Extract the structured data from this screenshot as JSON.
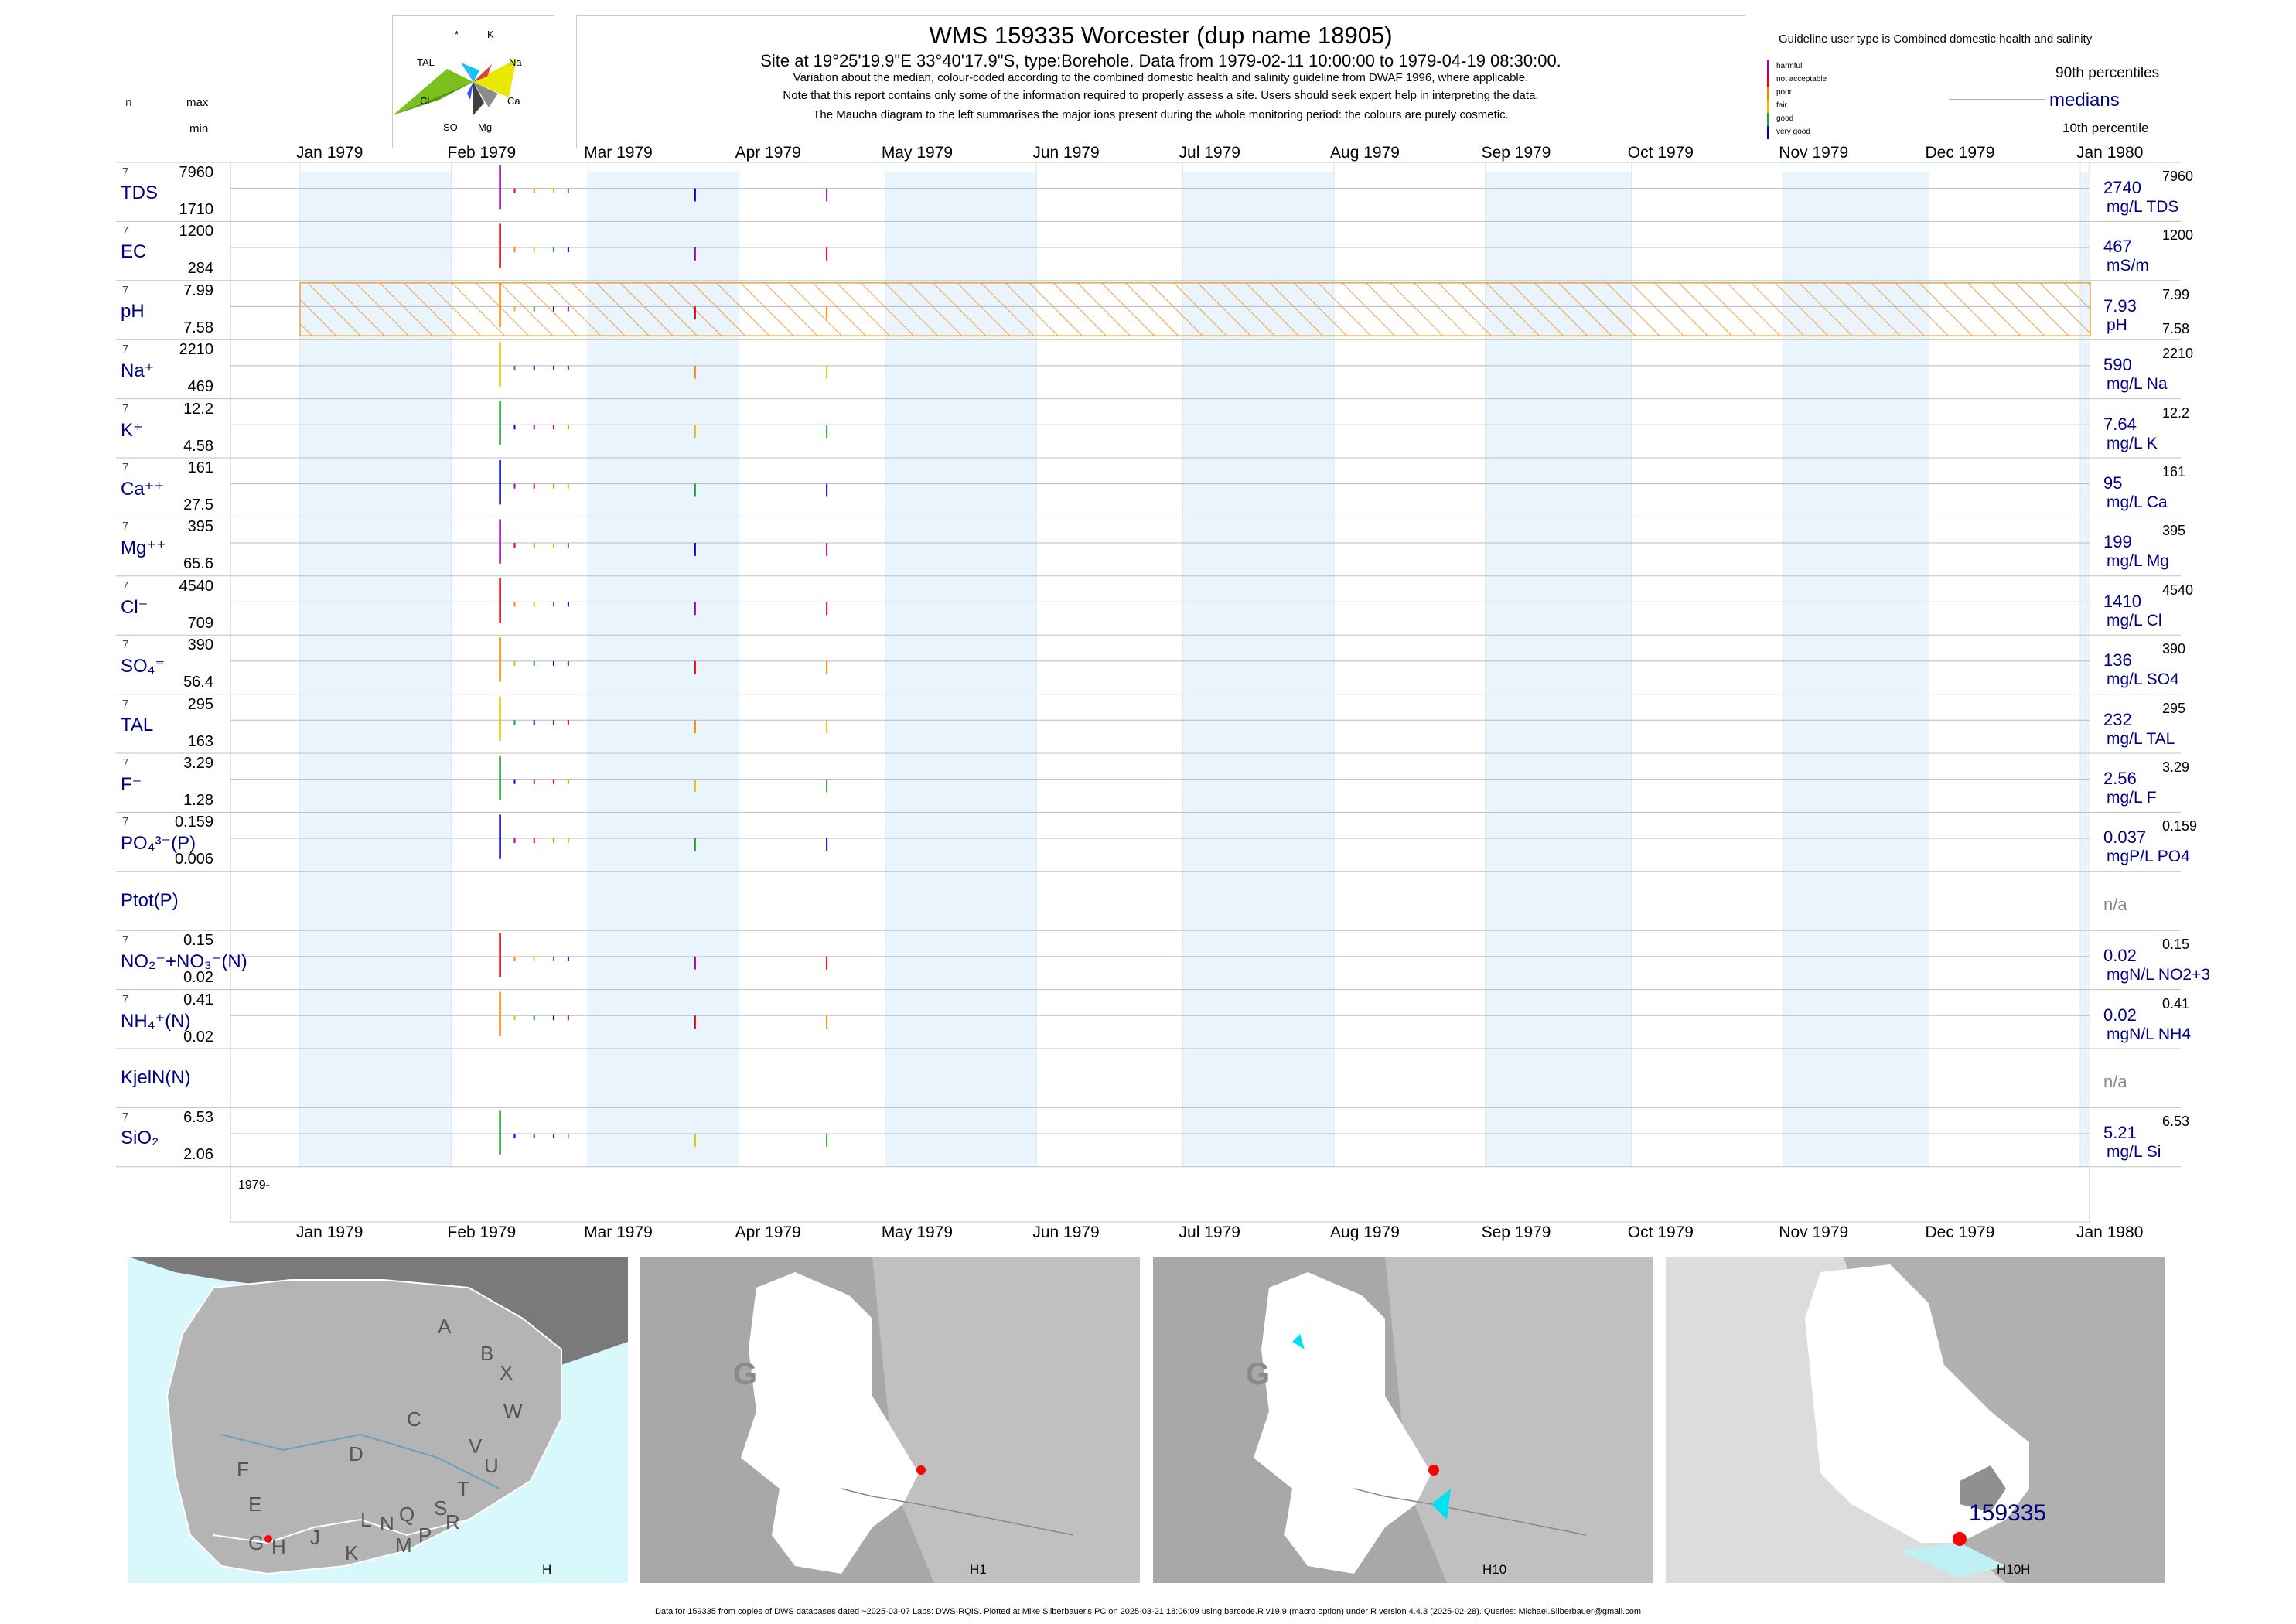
{
  "header": {
    "title": "WMS 159335  Worcester (dup name 18905)",
    "subtitle": "Site at 19°25'19.9\"E 33°40'17.9\"S, type:Borehole.  Data from 1979-02-11 10:00:00 to 1979-04-19 08:30:00.",
    "note1": "Variation about the median,  colour-coded according to the combined domestic health and salinity guideline from DWAF 1996, where applicable.",
    "note2": "Note that this report contains only some of the information required to properly assess a site. Users should seek expert help in interpreting the data.",
    "note3": "The Maucha diagram to the left summarises the major ions present during the whole monitoring period: the colours are purely cosmetic."
  },
  "left_header": {
    "n": "n",
    "max": "max",
    "min": "min"
  },
  "maucha": {
    "labels": {
      "star": "*",
      "k": "K",
      "tal": "TAL",
      "na": "Na",
      "cl": "Cl",
      "ca": "Ca",
      "so4": "SO",
      "mg": "Mg"
    },
    "colors": {
      "na": "#e8e800",
      "cl": "#7cc020",
      "k": "#00c8ff",
      "tal": "#ff80c0",
      "ca": "#8c8c8c",
      "mg": "#404040",
      "so4": "#3050ff"
    }
  },
  "legend": {
    "guideline": "Guideline user type is Combined domestic health and salinity",
    "classes": [
      {
        "label": "harmful",
        "color": "#a000a0"
      },
      {
        "label": "not acceptable",
        "color": "#e00000"
      },
      {
        "label": "poor",
        "color": "#ff8000"
      },
      {
        "label": "fair",
        "color": "#e0c000"
      },
      {
        "label": "good",
        "color": "#20a020"
      },
      {
        "label": "very good",
        "color": "#0000c0"
      }
    ],
    "p90": "90th percentiles",
    "medians": "medians",
    "p10": "10th percentile"
  },
  "chart_data": {
    "type": "line",
    "x_range": [
      "1979-01-01",
      "1980-01-01"
    ],
    "months": [
      "Jan 1979",
      "Feb 1979",
      "Mar 1979",
      "Apr 1979",
      "May 1979",
      "Jun 1979",
      "Jul 1979",
      "Aug 1979",
      "Sep 1979",
      "Oct 1979",
      "Nov 1979",
      "Dec 1979",
      "Jan 1980"
    ],
    "sample_dates": [
      "1979-02-11",
      "1979-02-14",
      "1979-02-18",
      "1979-02-22",
      "1979-02-25",
      "1979-03-23",
      "1979-04-19"
    ],
    "year_label": "1979-",
    "variables": [
      {
        "label": "TDS",
        "n": "7",
        "max": "7960",
        "min": "1710",
        "median": "2740",
        "unit": "mg/L TDS",
        "right_max": "7960",
        "right_min": ""
      },
      {
        "label": "EC",
        "n": "7",
        "max": "1200",
        "min": "284",
        "median": "467",
        "unit": "mS/m",
        "right_max": "1200",
        "right_min": ""
      },
      {
        "label": "pH",
        "n": "7",
        "max": "7.99",
        "min": "7.58",
        "median": "7.93",
        "unit": "pH",
        "right_max": "7.99",
        "right_min": "7.58"
      },
      {
        "label": "Na⁺",
        "n": "7",
        "max": "2210",
        "min": "469",
        "median": "590",
        "unit": "mg/L Na",
        "right_max": "2210",
        "right_min": ""
      },
      {
        "label": "K⁺",
        "n": "7",
        "max": "12.2",
        "min": "4.58",
        "median": "7.64",
        "unit": "mg/L K",
        "right_max": "12.2",
        "right_min": ""
      },
      {
        "label": "Ca⁺⁺",
        "n": "7",
        "max": "161",
        "min": "27.5",
        "median": "95",
        "unit": "mg/L Ca",
        "right_max": "161",
        "right_min": ""
      },
      {
        "label": "Mg⁺⁺",
        "n": "7",
        "max": "395",
        "min": "65.6",
        "median": "199",
        "unit": "mg/L Mg",
        "right_max": "395",
        "right_min": ""
      },
      {
        "label": "Cl⁻",
        "n": "7",
        "max": "4540",
        "min": "709",
        "median": "1410",
        "unit": "mg/L Cl",
        "right_max": "4540",
        "right_min": ""
      },
      {
        "label": "SO₄⁼",
        "n": "7",
        "max": "390",
        "min": "56.4",
        "median": "136",
        "unit": "mg/L SO4",
        "right_max": "390",
        "right_min": ""
      },
      {
        "label": "TAL",
        "n": "7",
        "max": "295",
        "min": "163",
        "median": "232",
        "unit": "mg/L TAL",
        "right_max": "295",
        "right_min": ""
      },
      {
        "label": "F⁻",
        "n": "7",
        "max": "3.29",
        "min": "1.28",
        "median": "2.56",
        "unit": "mg/L F",
        "right_max": "3.29",
        "right_min": ""
      },
      {
        "label": "PO₄³⁻(P)",
        "n": "7",
        "max": "0.159",
        "min": "0.006",
        "median": "0.037",
        "unit": "mgP/L PO4",
        "right_max": "0.159",
        "right_min": ""
      },
      {
        "label": "Ptot(P)",
        "n": "",
        "max": "",
        "min": "",
        "median": "n/a",
        "unit": "",
        "right_max": "",
        "right_min": ""
      },
      {
        "label": "NO₂⁻+NO₃⁻(N)",
        "n": "7",
        "max": "0.15",
        "min": "0.02",
        "median": "0.02",
        "unit": "mgN/L NO2+3",
        "right_max": "0.15",
        "right_min": ""
      },
      {
        "label": "NH₄⁺(N)",
        "n": "7",
        "max": "0.41",
        "min": "0.02",
        "median": "0.02",
        "unit": "mgN/L NH4",
        "right_max": "0.41",
        "right_min": ""
      },
      {
        "label": "KjelN(N)",
        "n": "",
        "max": "",
        "min": "",
        "median": "n/a",
        "unit": "",
        "right_max": "",
        "right_min": ""
      },
      {
        "label": "SiO₂",
        "n": "7",
        "max": "6.53",
        "min": "2.06",
        "median": "5.21",
        "unit": "mg/L Si",
        "right_max": "6.53",
        "right_min": ""
      }
    ]
  },
  "maps": [
    {
      "caption": "H",
      "letters": [
        "A",
        "B",
        "X",
        "W",
        "C",
        "D",
        "V",
        "U",
        "F",
        "T",
        "E",
        "S",
        "R",
        "L",
        "N",
        "Q",
        "G",
        "H",
        "J",
        "K",
        "M",
        "P"
      ]
    },
    {
      "caption": "H1",
      "region": "G"
    },
    {
      "caption": "H10",
      "region": "G"
    },
    {
      "caption": "H10H",
      "site": "159335"
    }
  ],
  "footer": "Data for 159335 from copies of DWS databases dated ~2025-03-07 Labs: DWS-RQIS. Plotted at Mike Silberbauer's PC on 2025-03-21 18:06:09 using barcode.R v19.9 (macro option) under R version 4.4.3 (2025-02-28). Queries: Michael.Silberbauer@gmail.com"
}
